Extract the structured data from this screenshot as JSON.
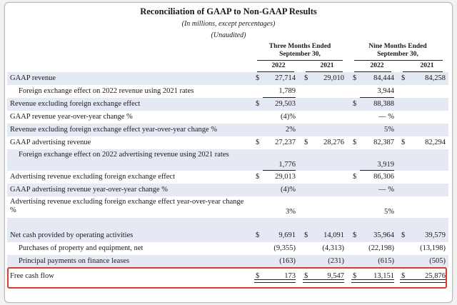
{
  "header": {
    "title": "Reconciliation of GAAP to Non-GAAP Results",
    "subtitle": "(In millions, except percentages)",
    "subtitle2": "(Unaudited)",
    "period_three": "Three Months Ended\nSeptember 30,",
    "period_nine": "Nine Months Ended\nSeptember 30,",
    "years": [
      "2022",
      "2021",
      "2022",
      "2021"
    ]
  },
  "currency_symbol": "$",
  "rows": [
    {
      "label": "GAAP revenue",
      "values": [
        "27,714",
        "29,010",
        "84,444",
        "84,258"
      ],
      "dollars": [
        true,
        true,
        true,
        true
      ]
    },
    {
      "label": "Foreign exchange effect on 2022 revenue using 2021 rates",
      "values": [
        "1,789",
        "",
        "3,944",
        ""
      ],
      "dollars": [
        false,
        false,
        false,
        false
      ]
    },
    {
      "label": "Revenue excluding foreign exchange effect",
      "values": [
        "29,503",
        "",
        "88,388",
        ""
      ],
      "dollars": [
        true,
        false,
        true,
        false
      ]
    },
    {
      "label": "GAAP revenue year-over-year change %",
      "values": [
        "(4)%",
        "",
        "— %",
        ""
      ],
      "dollars": [
        false,
        false,
        false,
        false
      ]
    },
    {
      "label": "Revenue excluding foreign exchange effect year-over-year change %",
      "values": [
        "2%",
        "",
        "5%",
        ""
      ],
      "dollars": [
        false,
        false,
        false,
        false
      ]
    },
    {
      "label": "GAAP advertising revenue",
      "values": [
        "27,237",
        "28,276",
        "82,387",
        "82,294"
      ],
      "dollars": [
        true,
        true,
        true,
        true
      ]
    },
    {
      "label": "Foreign exchange effect on 2022 advertising revenue using 2021 rates",
      "values": [
        "1,776",
        "",
        "3,919",
        ""
      ],
      "dollars": [
        false,
        false,
        false,
        false
      ]
    },
    {
      "label": "Advertising revenue excluding foreign exchange effect",
      "values": [
        "29,013",
        "",
        "86,306",
        ""
      ],
      "dollars": [
        true,
        false,
        true,
        false
      ]
    },
    {
      "label": "GAAP advertising revenue year-over-year change %",
      "values": [
        "(4)%",
        "",
        "— %",
        ""
      ],
      "dollars": [
        false,
        false,
        false,
        false
      ]
    },
    {
      "label": "Advertising revenue excluding foreign exchange effect year-over-year change %",
      "values": [
        "3%",
        "",
        "5%",
        ""
      ],
      "dollars": [
        false,
        false,
        false,
        false
      ]
    },
    {
      "label": "Net cash provided by operating activities",
      "values": [
        "9,691",
        "14,091",
        "35,964",
        "39,579"
      ],
      "dollars": [
        true,
        true,
        true,
        true
      ]
    },
    {
      "label": "Purchases of property and equipment, net",
      "values": [
        "(9,355)",
        "(4,313)",
        "(22,198)",
        "(13,198)"
      ],
      "dollars": [
        false,
        false,
        false,
        false
      ]
    },
    {
      "label": "Principal payments on finance leases",
      "values": [
        "(163)",
        "(231)",
        "(615)",
        "(505)"
      ],
      "dollars": [
        false,
        false,
        false,
        false
      ]
    },
    {
      "label": "Free cash flow",
      "values": [
        "173",
        "9,547",
        "13,151",
        "25,876"
      ],
      "dollars": [
        true,
        true,
        true,
        true
      ]
    }
  ]
}
